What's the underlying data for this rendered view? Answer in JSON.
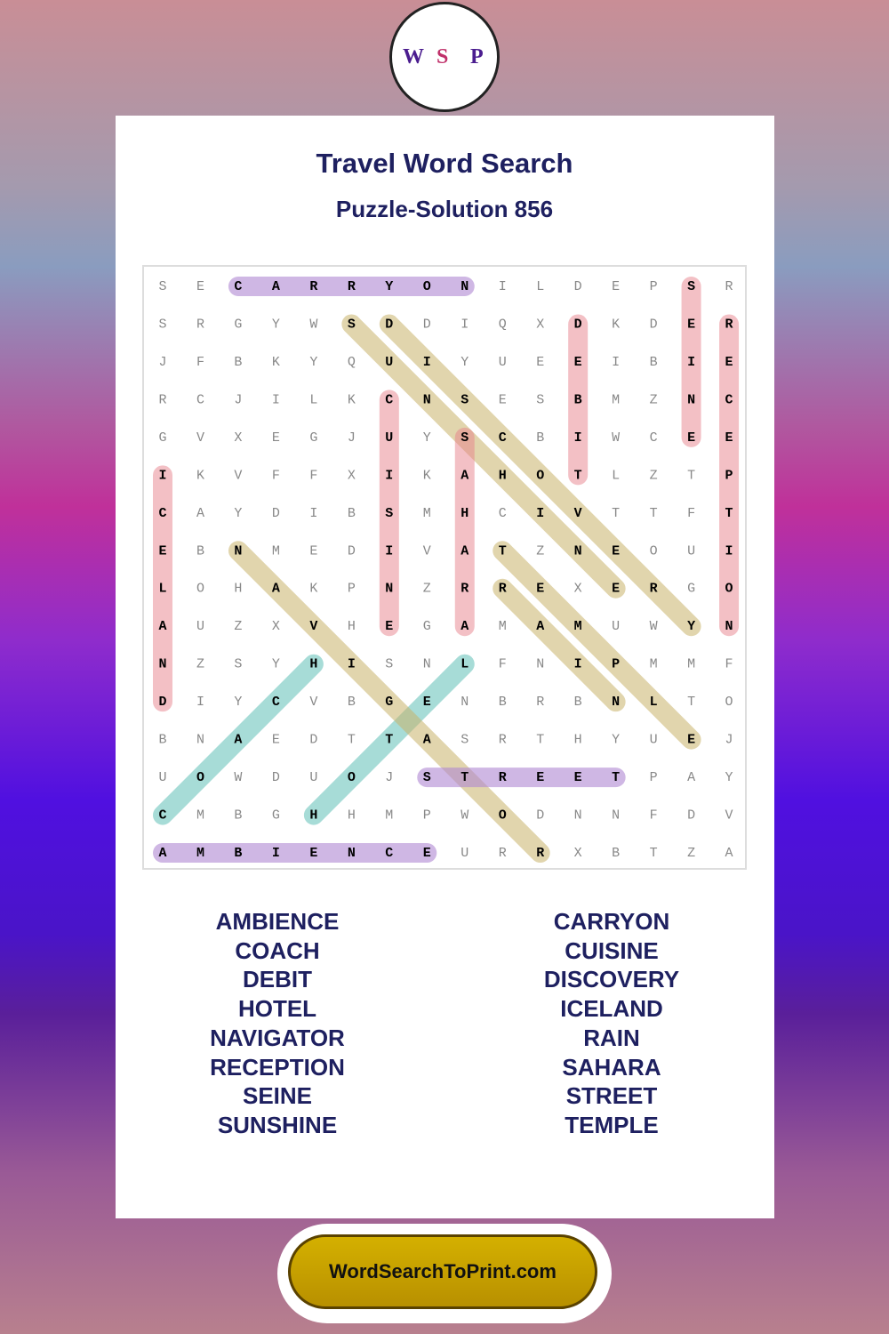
{
  "logo": [
    "W",
    "S",
    "P"
  ],
  "header": {
    "title": "Travel Word Search",
    "subtitle": "Puzzle-Solution 856"
  },
  "grid": [
    [
      "S",
      "E",
      "C",
      "A",
      "R",
      "R",
      "Y",
      "O",
      "N",
      "I",
      "L",
      "D",
      "E",
      "P",
      "S",
      "R"
    ],
    [
      "S",
      "R",
      "G",
      "Y",
      "W",
      "S",
      "D",
      "D",
      "I",
      "Q",
      "X",
      "D",
      "K",
      "D",
      "E",
      "R"
    ],
    [
      "J",
      "F",
      "B",
      "K",
      "Y",
      "Q",
      "U",
      "I",
      "Y",
      "U",
      "E",
      "E",
      "I",
      "B",
      "I",
      "E"
    ],
    [
      "R",
      "C",
      "J",
      "I",
      "L",
      "K",
      "C",
      "N",
      "S",
      "E",
      "S",
      "B",
      "M",
      "Z",
      "N",
      "C"
    ],
    [
      "G",
      "V",
      "X",
      "E",
      "G",
      "J",
      "U",
      "Y",
      "S",
      "C",
      "B",
      "I",
      "W",
      "C",
      "E",
      "E"
    ],
    [
      "I",
      "K",
      "V",
      "F",
      "F",
      "X",
      "I",
      "K",
      "A",
      "H",
      "O",
      "T",
      "L",
      "Z",
      "T",
      "P"
    ],
    [
      "C",
      "A",
      "Y",
      "D",
      "I",
      "B",
      "S",
      "M",
      "H",
      "C",
      "I",
      "V",
      "T",
      "T",
      "F",
      "T"
    ],
    [
      "E",
      "B",
      "N",
      "M",
      "E",
      "D",
      "I",
      "V",
      "A",
      "T",
      "Z",
      "N",
      "E",
      "O",
      "U",
      "I"
    ],
    [
      "L",
      "O",
      "H",
      "A",
      "K",
      "P",
      "N",
      "Z",
      "R",
      "R",
      "E",
      "X",
      "E",
      "R",
      "G",
      "O"
    ],
    [
      "A",
      "U",
      "Z",
      "X",
      "V",
      "H",
      "E",
      "G",
      "A",
      "M",
      "A",
      "M",
      "U",
      "W",
      "Y",
      "N"
    ],
    [
      "N",
      "Z",
      "S",
      "Y",
      "H",
      "I",
      "S",
      "N",
      "L",
      "F",
      "N",
      "I",
      "P",
      "M",
      "M",
      "F"
    ],
    [
      "D",
      "I",
      "Y",
      "C",
      "V",
      "B",
      "G",
      "E",
      "N",
      "B",
      "R",
      "B",
      "N",
      "L",
      "T",
      "O"
    ],
    [
      "B",
      "N",
      "A",
      "E",
      "D",
      "T",
      "T",
      "A",
      "S",
      "R",
      "T",
      "H",
      "Y",
      "U",
      "E",
      "J"
    ],
    [
      "U",
      "O",
      "W",
      "D",
      "U",
      "O",
      "J",
      "S",
      "T",
      "R",
      "E",
      "E",
      "T",
      "P",
      "A",
      "Y"
    ],
    [
      "C",
      "M",
      "B",
      "G",
      "H",
      "H",
      "M",
      "P",
      "W",
      "O",
      "D",
      "N",
      "N",
      "F",
      "D",
      "V"
    ],
    [
      "A",
      "M",
      "B",
      "I",
      "E",
      "N",
      "C",
      "E",
      "U",
      "R",
      "R",
      "X",
      "B",
      "T",
      "Z",
      "A"
    ]
  ],
  "words": {
    "left": [
      "AMBIENCE",
      "COACH",
      "DEBIT",
      "HOTEL",
      "NAVIGATOR",
      "RECEPTION",
      "SEINE",
      "SUNSHINE"
    ],
    "right": [
      "CARRYON",
      "CUISINE",
      "DISCOVERY",
      "ICELAND",
      "RAIN",
      "SAHARA",
      "STREET",
      "TEMPLE"
    ]
  },
  "footer": {
    "button": "WordSearchToPrint.com"
  }
}
